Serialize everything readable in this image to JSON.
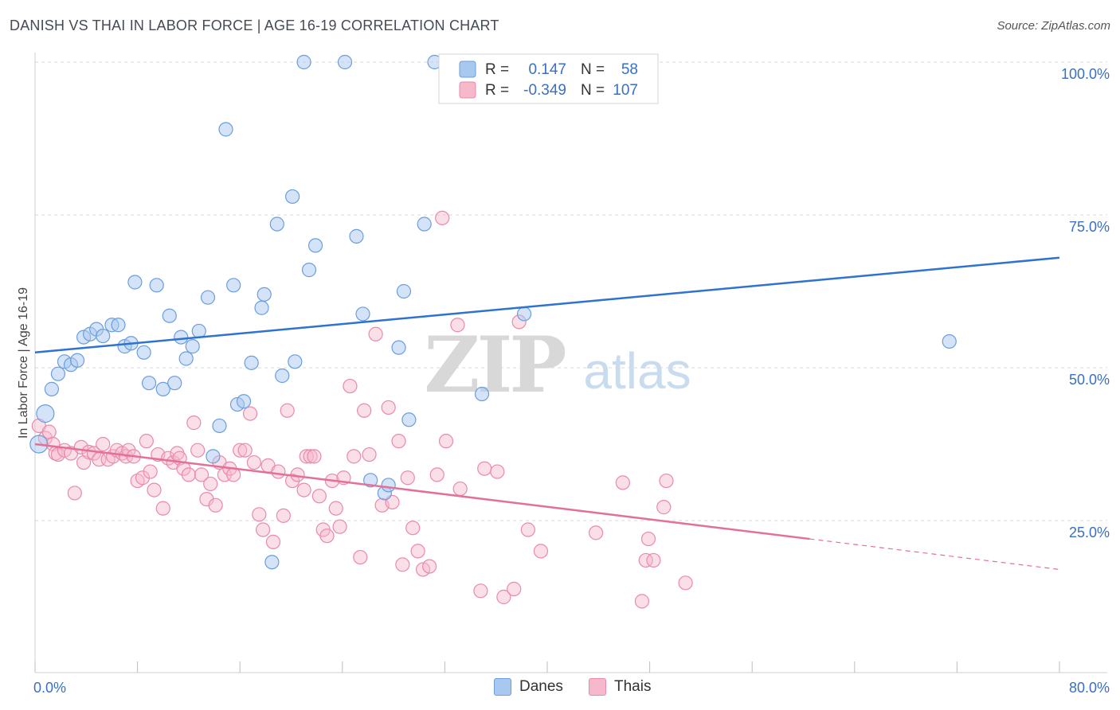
{
  "title": "DANISH VS THAI IN LABOR FORCE | AGE 16-19 CORRELATION CHART",
  "source": "Source: ZipAtlas.com",
  "watermark": {
    "zip": "ZIP",
    "atlas": "atlas"
  },
  "colors": {
    "danes_fill": "#a9c8ef",
    "danes_stroke": "#6a9edc",
    "danes_line": "#2f72cf",
    "thais_fill": "#f6b8cb",
    "thais_stroke": "#e98aa8",
    "thais_line": "#e2709a",
    "value_text": "#3a6fc4",
    "grid": "#d9d9d9"
  },
  "legend": {
    "r_label": "R =",
    "n_label": "N =",
    "danes": {
      "r": "0.147",
      "n": "58"
    },
    "thais": {
      "r": "-0.349",
      "n": "107"
    }
  },
  "bottom_legend": {
    "danes": "Danes",
    "thais": "Thais"
  },
  "chart_data": {
    "type": "scatter",
    "title": "DANISH VS THAI IN LABOR FORCE | AGE 16-19 CORRELATION CHART",
    "xlabel": "",
    "ylabel": "In Labor Force | Age 16-19",
    "xlim": [
      0,
      80
    ],
    "ylim": [
      0,
      105
    ],
    "x_tick_labels": [
      {
        "value": 0,
        "label": "0.0%"
      },
      {
        "value": 80,
        "label": "80.0%"
      }
    ],
    "y_tick_labels": [
      {
        "value": 25,
        "label": "25.0%"
      },
      {
        "value": 50,
        "label": "50.0%"
      },
      {
        "value": 75,
        "label": "75.0%"
      },
      {
        "value": 100,
        "label": "100.0%"
      }
    ],
    "grid": true,
    "legend_position": "top-center",
    "series": [
      {
        "name": "Danes",
        "trend": {
          "x0": 0,
          "y0": 52.5,
          "x1": 80,
          "y1": 68,
          "dashed_from": null
        },
        "points": [
          [
            0.3,
            37.5
          ],
          [
            0.8,
            42.5
          ],
          [
            1.3,
            46.5
          ],
          [
            1.8,
            49
          ],
          [
            2.3,
            51
          ],
          [
            2.8,
            50.5
          ],
          [
            3.3,
            51.2
          ],
          [
            3.8,
            55
          ],
          [
            4.3,
            55.5
          ],
          [
            4.8,
            56.3
          ],
          [
            5.3,
            55.2
          ],
          [
            6.0,
            57
          ],
          [
            6.5,
            57
          ],
          [
            7.0,
            53.5
          ],
          [
            7.5,
            54
          ],
          [
            7.8,
            64
          ],
          [
            8.5,
            52.5
          ],
          [
            8.9,
            47.5
          ],
          [
            9.5,
            63.5
          ],
          [
            10.0,
            46.5
          ],
          [
            10.5,
            58.5
          ],
          [
            10.9,
            47.5
          ],
          [
            11.4,
            55
          ],
          [
            11.8,
            51.5
          ],
          [
            12.3,
            53.5
          ],
          [
            12.8,
            56
          ],
          [
            13.5,
            61.5
          ],
          [
            13.9,
            35.5
          ],
          [
            14.4,
            40.5
          ],
          [
            14.9,
            89
          ],
          [
            15.5,
            63.5
          ],
          [
            15.8,
            44
          ],
          [
            16.3,
            44.5
          ],
          [
            16.9,
            50.8
          ],
          [
            17.7,
            59.8
          ],
          [
            17.9,
            62
          ],
          [
            18.5,
            18.2
          ],
          [
            18.9,
            73.5
          ],
          [
            19.3,
            48.7
          ],
          [
            20.1,
            78
          ],
          [
            20.3,
            51
          ],
          [
            21.0,
            100
          ],
          [
            21.4,
            66
          ],
          [
            21.9,
            70
          ],
          [
            24.2,
            100
          ],
          [
            25.1,
            71.5
          ],
          [
            25.6,
            58.8
          ],
          [
            26.2,
            31.6
          ],
          [
            27.3,
            29.5
          ],
          [
            27.6,
            30.8
          ],
          [
            28.4,
            53.3
          ],
          [
            28.8,
            62.5
          ],
          [
            29.2,
            41.5
          ],
          [
            30.4,
            73.5
          ],
          [
            31.2,
            100
          ],
          [
            34.9,
            45.7
          ],
          [
            38.2,
            58.8
          ],
          [
            71.4,
            54.3
          ]
        ]
      },
      {
        "name": "Thais",
        "trend": {
          "x0": 0,
          "y0": 37.5,
          "x1": 80,
          "y1": 17,
          "dashed_from": 60.5
        },
        "points": [
          [
            0.3,
            40.5
          ],
          [
            0.8,
            38.5
          ],
          [
            1.1,
            39.5
          ],
          [
            1.4,
            37.5
          ],
          [
            1.6,
            36
          ],
          [
            1.8,
            35.8
          ],
          [
            2.3,
            36.5
          ],
          [
            2.8,
            36
          ],
          [
            3.1,
            29.5
          ],
          [
            3.6,
            37
          ],
          [
            3.8,
            34.5
          ],
          [
            4.2,
            36.2
          ],
          [
            4.6,
            36
          ],
          [
            5.0,
            35
          ],
          [
            5.3,
            37.5
          ],
          [
            5.7,
            35
          ],
          [
            6.1,
            35.5
          ],
          [
            6.4,
            36.5
          ],
          [
            6.8,
            36
          ],
          [
            7.1,
            35.5
          ],
          [
            7.3,
            36.5
          ],
          [
            7.7,
            35.5
          ],
          [
            8.0,
            31.5
          ],
          [
            8.4,
            32
          ],
          [
            8.7,
            38
          ],
          [
            9.0,
            33
          ],
          [
            9.3,
            30
          ],
          [
            9.6,
            35.8
          ],
          [
            10.0,
            27
          ],
          [
            10.4,
            35.2
          ],
          [
            10.8,
            34.5
          ],
          [
            11.1,
            36
          ],
          [
            11.3,
            35.2
          ],
          [
            11.6,
            33.5
          ],
          [
            12.0,
            32.5
          ],
          [
            12.4,
            41
          ],
          [
            12.7,
            36.5
          ],
          [
            13.0,
            32.5
          ],
          [
            13.4,
            28.5
          ],
          [
            13.7,
            31
          ],
          [
            14.1,
            27.5
          ],
          [
            14.4,
            34.5
          ],
          [
            14.8,
            32.5
          ],
          [
            15.2,
            33.5
          ],
          [
            15.5,
            32.5
          ],
          [
            16.0,
            36.5
          ],
          [
            16.4,
            36.5
          ],
          [
            16.8,
            42.5
          ],
          [
            17.1,
            34.5
          ],
          [
            17.5,
            26
          ],
          [
            17.8,
            23.5
          ],
          [
            18.2,
            34
          ],
          [
            18.6,
            21.5
          ],
          [
            19.0,
            33
          ],
          [
            19.4,
            25.8
          ],
          [
            19.7,
            43
          ],
          [
            20.1,
            31.5
          ],
          [
            20.5,
            32.5
          ],
          [
            21.0,
            30
          ],
          [
            21.2,
            35.5
          ],
          [
            21.5,
            35.5
          ],
          [
            21.8,
            35.5
          ],
          [
            22.2,
            29
          ],
          [
            22.5,
            23.5
          ],
          [
            22.8,
            22.5
          ],
          [
            23.2,
            31.5
          ],
          [
            23.5,
            27
          ],
          [
            23.8,
            24
          ],
          [
            24.1,
            32
          ],
          [
            24.6,
            47
          ],
          [
            24.9,
            35.5
          ],
          [
            25.4,
            19
          ],
          [
            25.7,
            43
          ],
          [
            26.1,
            35.8
          ],
          [
            26.6,
            55.5
          ],
          [
            27.1,
            27.5
          ],
          [
            27.6,
            43.5
          ],
          [
            27.9,
            28
          ],
          [
            28.4,
            38
          ],
          [
            28.7,
            17.8
          ],
          [
            29.1,
            32
          ],
          [
            29.5,
            23.8
          ],
          [
            29.9,
            20
          ],
          [
            30.3,
            17
          ],
          [
            30.8,
            17.5
          ],
          [
            31.4,
            32.5
          ],
          [
            31.8,
            74.5
          ],
          [
            32.1,
            38
          ],
          [
            33.0,
            57
          ],
          [
            33.2,
            30.2
          ],
          [
            34.8,
            13.5
          ],
          [
            35.1,
            33.5
          ],
          [
            36.1,
            33
          ],
          [
            36.6,
            12.5
          ],
          [
            37.4,
            13.8
          ],
          [
            37.8,
            57.5
          ],
          [
            38.5,
            23.5
          ],
          [
            39.5,
            20
          ],
          [
            43.8,
            23
          ],
          [
            45.9,
            31.2
          ],
          [
            47.4,
            11.8
          ],
          [
            47.7,
            18.5
          ],
          [
            47.9,
            22
          ],
          [
            48.3,
            18.5
          ],
          [
            49.1,
            27.2
          ],
          [
            49.3,
            31.5
          ],
          [
            50.8,
            14.8
          ]
        ]
      }
    ]
  }
}
